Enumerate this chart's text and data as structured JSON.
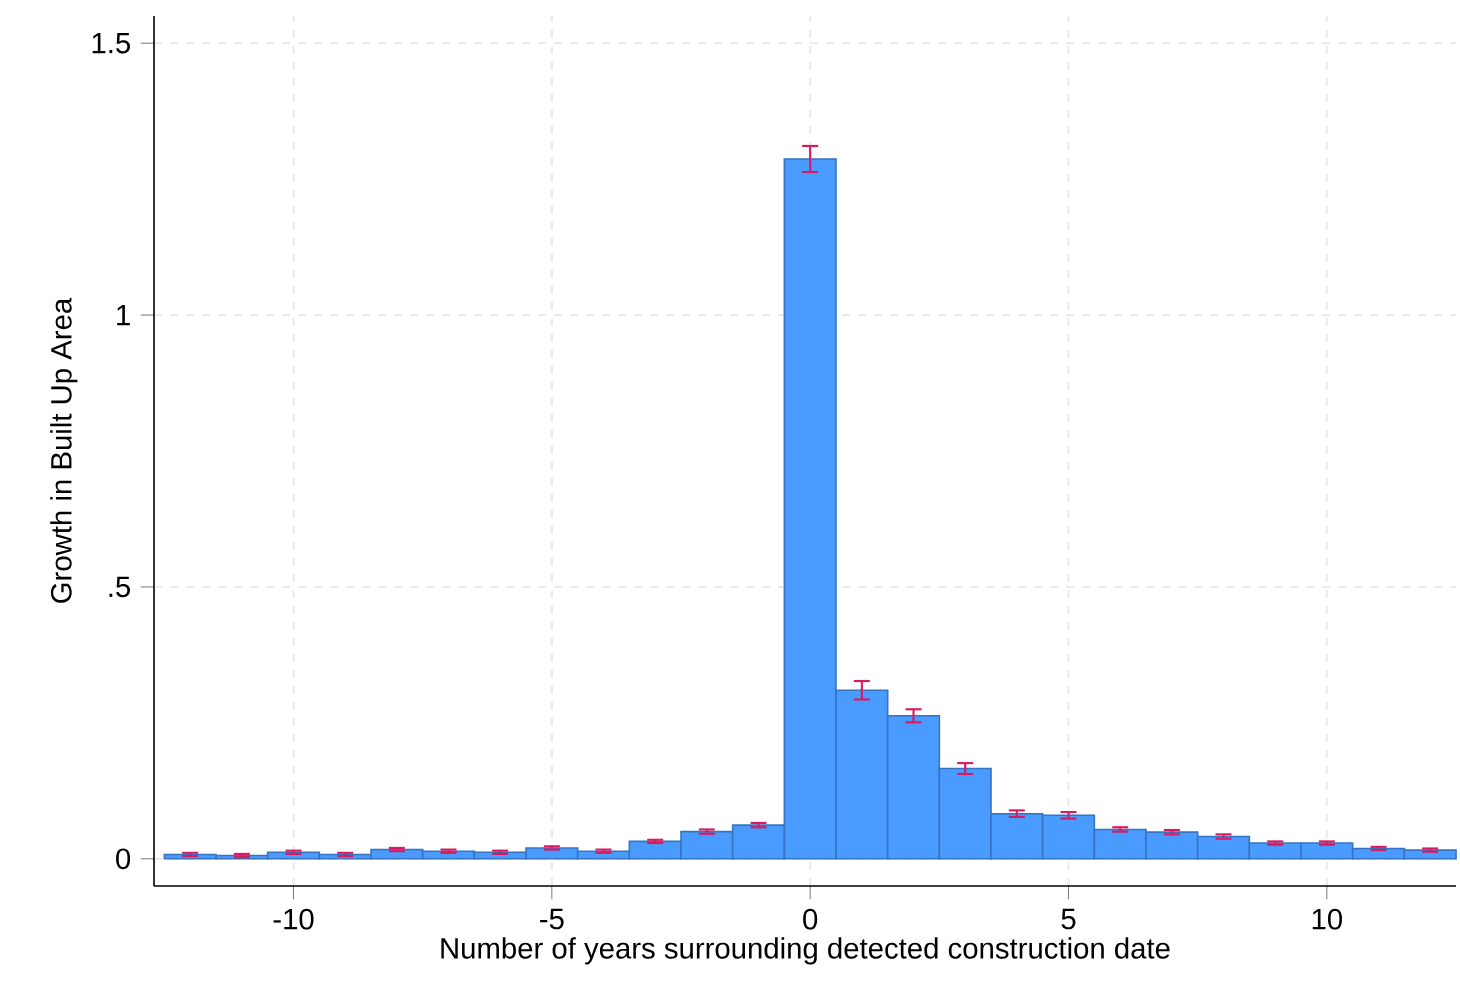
{
  "chart_data": {
    "type": "bar",
    "xlabel": "Number of years surrounding detected construction date",
    "ylabel": "Growth in Built Up Area",
    "x": [
      -12,
      -11,
      -10,
      -9,
      -8,
      -7,
      -6,
      -5,
      -4,
      -3,
      -2,
      -1,
      0,
      1,
      2,
      3,
      4,
      5,
      6,
      7,
      8,
      9,
      10,
      11,
      12
    ],
    "values": [
      0.008,
      0.006,
      0.012,
      0.008,
      0.017,
      0.014,
      0.012,
      0.02,
      0.014,
      0.032,
      0.05,
      0.062,
      1.287,
      0.31,
      0.263,
      0.166,
      0.083,
      0.08,
      0.054,
      0.049,
      0.041,
      0.029,
      0.029,
      0.019,
      0.016
    ],
    "errors": [
      0.003,
      0.003,
      0.003,
      0.003,
      0.003,
      0.003,
      0.003,
      0.003,
      0.003,
      0.003,
      0.004,
      0.004,
      0.024,
      0.017,
      0.012,
      0.01,
      0.006,
      0.006,
      0.004,
      0.004,
      0.004,
      0.003,
      0.003,
      0.003,
      0.003
    ],
    "color": "#4a9bff",
    "xlim": [
      -12.7,
      12.5
    ],
    "ylim": [
      -0.05,
      1.55
    ],
    "xticks": [
      -10,
      -5,
      0,
      5,
      10
    ],
    "yticks": [
      0,
      {
        "value": 0.5,
        "label": ".5"
      },
      1,
      1.5
    ],
    "grid": true
  }
}
